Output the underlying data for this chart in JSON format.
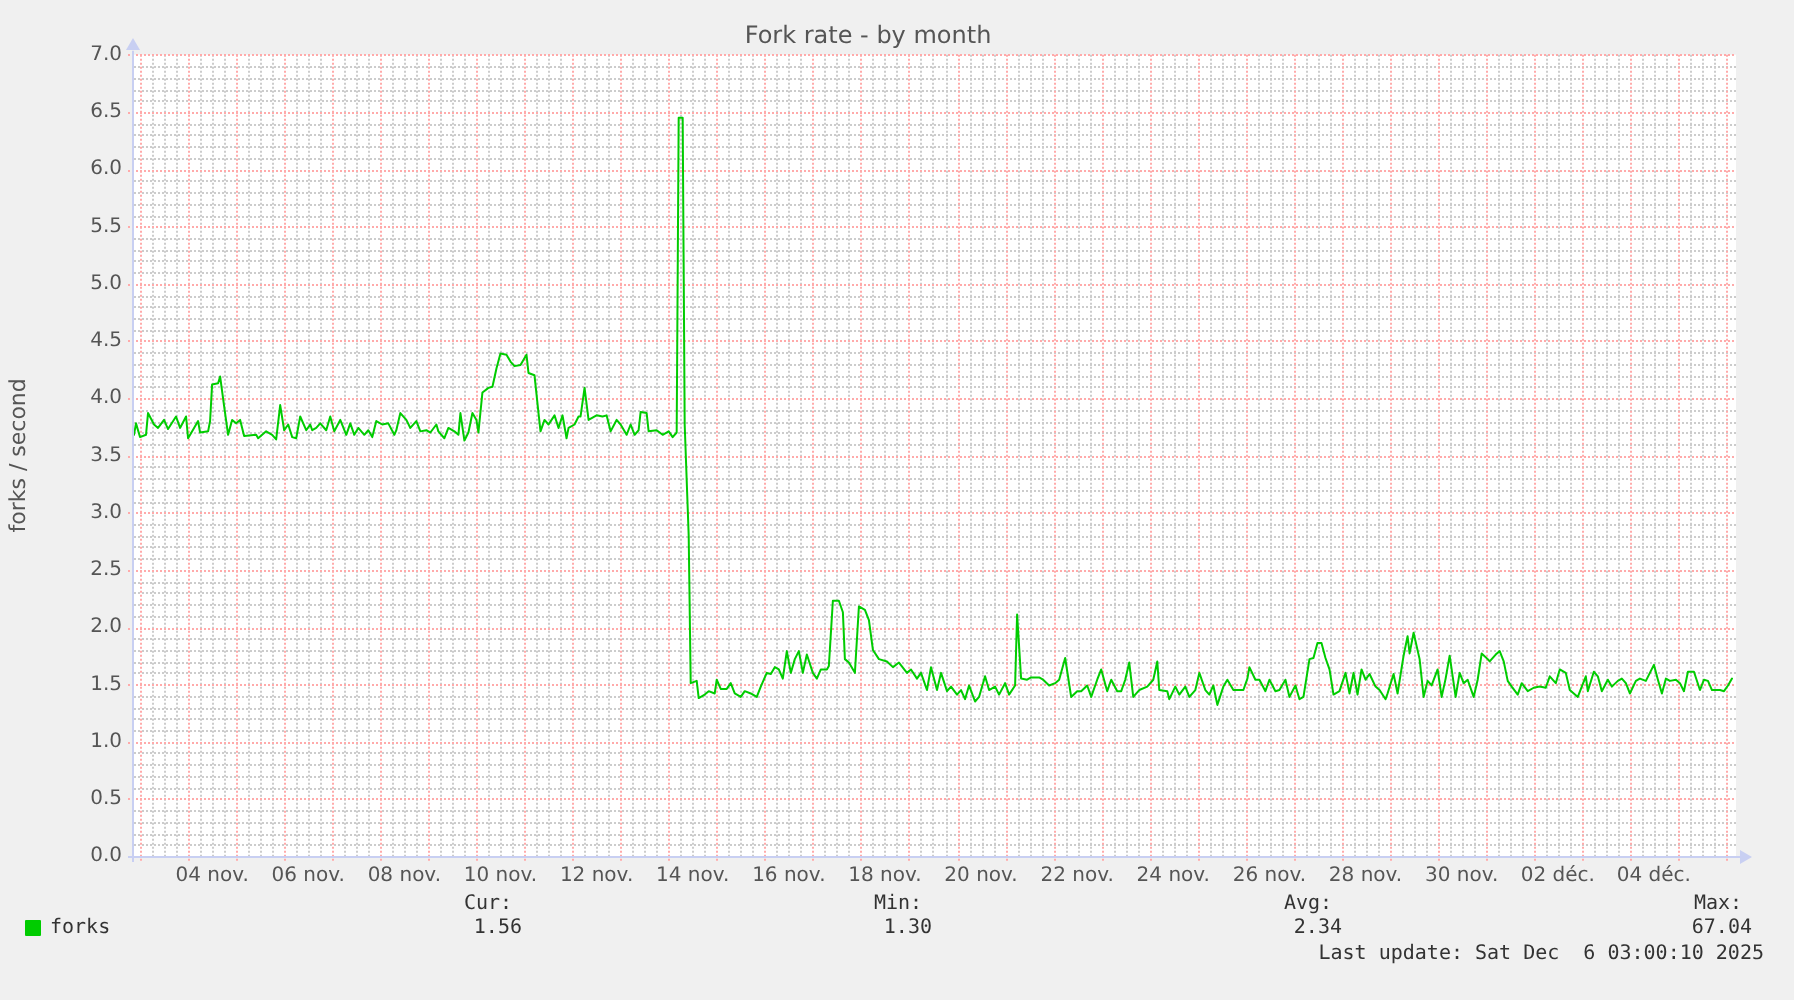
{
  "chart_data": {
    "type": "line",
    "title": "Fork rate - by month",
    "ylabel": "forks / second",
    "x": [
      "2025-11-02T21:00",
      "2025-11-02T22:00",
      "2025-11-03T00:00",
      "2025-11-03T03:00",
      "2025-11-03T04:00",
      "2025-11-03T07:00",
      "2025-11-03T09:00",
      "2025-11-03T12:00",
      "2025-11-03T14:00",
      "2025-11-03T18:00",
      "2025-11-03T20:00",
      "2025-11-03T23:00",
      "2025-11-04T00:00",
      "2025-11-04T03:00",
      "2025-11-04T05:00",
      "2025-11-04T06:00",
      "2025-11-04T10:00",
      "2025-11-04T11:00",
      "2025-11-04T12:00",
      "2025-11-04T15:00",
      "2025-11-04T16:00",
      "2025-11-04T18:00",
      "2025-11-04T20:00",
      "2025-11-04T22:00",
      "2025-11-05T00:00",
      "2025-11-05T02:00",
      "2025-11-05T04:00",
      "2025-11-05T10:00",
      "2025-11-05T11:00",
      "2025-11-05T15:00",
      "2025-11-05T18:00",
      "2025-11-05T20:00",
      "2025-11-05T22:00",
      "2025-11-06T00:00",
      "2025-11-06T02:00",
      "2025-11-06T04:00",
      "2025-11-06T06:00",
      "2025-11-06T08:00",
      "2025-11-06T11:00",
      "2025-11-06T13:00",
      "2025-11-06T14:00",
      "2025-11-06T16:00",
      "2025-11-06T18:00",
      "2025-11-06T21:00",
      "2025-11-06T23:00",
      "2025-11-07T01:00",
      "2025-11-07T04:00",
      "2025-11-07T07:00",
      "2025-11-07T09:00",
      "2025-11-07T11:00",
      "2025-11-07T13:00",
      "2025-11-07T16:00",
      "2025-11-07T18:00",
      "2025-11-07T20:00",
      "2025-11-07T22:00",
      "2025-11-08T01:00",
      "2025-11-08T04:00",
      "2025-11-08T07:00",
      "2025-11-08T08:00",
      "2025-11-08T10:00",
      "2025-11-08T13:00",
      "2025-11-08T15:00",
      "2025-11-08T18:00",
      "2025-11-08T20:00",
      "2025-11-08T23:00",
      "2025-11-09T01:00",
      "2025-11-09T04:00",
      "2025-11-09T05:00",
      "2025-11-09T08:00",
      "2025-11-09T10:00",
      "2025-11-09T13:00",
      "2025-11-09T15:00",
      "2025-11-09T16:00",
      "2025-11-09T18:00",
      "2025-11-09T20:00",
      "2025-11-09T22:00",
      "2025-11-10T00:00",
      "2025-11-10T01:00",
      "2025-11-10T03:00",
      "2025-11-10T06:00",
      "2025-11-10T08:00",
      "2025-11-10T10:00",
      "2025-11-10T12:00",
      "2025-11-10T15:00",
      "2025-11-10T17:00",
      "2025-11-10T19:00",
      "2025-11-10T22:00",
      "2025-11-11T01:00",
      "2025-11-11T02:00",
      "2025-11-11T05:00",
      "2025-11-11T07:00",
      "2025-11-11T08:00",
      "2025-11-11T10:00",
      "2025-11-11T12:00",
      "2025-11-11T15:00",
      "2025-11-11T17:00",
      "2025-11-11T19:00",
      "2025-11-11T21:00",
      "2025-11-11T22:00",
      "2025-11-12T01:00",
      "2025-11-12T03:00",
      "2025-11-12T04:00",
      "2025-11-12T06:00",
      "2025-11-12T08:00",
      "2025-11-12T10:00",
      "2025-11-12T12:00",
      "2025-11-12T15:00",
      "2025-11-12T17:00",
      "2025-11-12T19:00",
      "2025-11-12T22:00",
      "2025-11-13T00:00",
      "2025-11-13T03:00",
      "2025-11-13T05:00",
      "2025-11-13T07:00",
      "2025-11-13T09:00",
      "2025-11-13T10:00",
      "2025-11-13T13:00",
      "2025-11-13T14:00",
      "2025-11-13T18:00",
      "2025-11-13T21:00",
      "2025-11-14T00:00",
      "2025-11-14T02:00",
      "2025-11-14T04:00",
      "2025-11-14T05:00",
      "2025-11-14T07:00",
      "2025-11-14T08:00",
      "2025-11-14T10:00",
      "2025-11-14T11:00",
      "2025-11-14T14:00",
      "2025-11-14T15:00",
      "2025-11-14T18:00",
      "2025-11-14T20:00",
      "2025-11-14T23:00",
      "2025-11-15T00:00",
      "2025-11-15T02:00",
      "2025-11-15T05:00",
      "2025-11-15T07:00",
      "2025-11-15T09:00",
      "2025-11-15T12:00",
      "2025-11-15T14:00",
      "2025-11-15T17:00",
      "2025-11-15T20:00",
      "2025-11-15T22:00",
      "2025-11-16T01:00",
      "2025-11-16T03:00",
      "2025-11-16T05:00",
      "2025-11-16T07:00",
      "2025-11-16T09:00",
      "2025-11-16T11:00",
      "2025-11-16T13:00",
      "2025-11-16T15:00",
      "2025-11-16T17:00",
      "2025-11-16T19:00",
      "2025-11-16T21:00",
      "2025-11-17T00:00",
      "2025-11-17T02:00",
      "2025-11-17T04:00",
      "2025-11-17T07:00",
      "2025-11-17T08:00",
      "2025-11-17T10:00",
      "2025-11-17T13:00",
      "2025-11-17T15:00",
      "2025-11-17T16:00",
      "2025-11-17T18:00",
      "2025-11-17T21:00",
      "2025-11-17T23:00",
      "2025-11-18T02:00",
      "2025-11-18T04:00",
      "2025-11-18T06:00",
      "2025-11-18T09:00",
      "2025-11-18T13:00",
      "2025-11-18T16:00",
      "2025-11-18T19:00",
      "2025-11-18T23:00",
      "2025-11-19T01:00",
      "2025-11-19T04:00",
      "2025-11-19T06:00",
      "2025-11-19T09:00",
      "2025-11-19T11:00",
      "2025-11-19T14:00",
      "2025-11-19T16:00",
      "2025-11-19T19:00",
      "2025-11-19T21:00",
      "2025-11-20T00:00",
      "2025-11-20T02:00",
      "2025-11-20T04:00",
      "2025-11-20T06:00",
      "2025-11-20T09:00",
      "2025-11-20T11:00",
      "2025-11-20T14:00",
      "2025-11-20T16:00",
      "2025-11-20T19:00",
      "2025-11-20T21:00",
      "2025-11-21T00:00",
      "2025-11-21T02:00",
      "2025-11-21T05:00",
      "2025-11-21T06:00",
      "2025-11-21T08:00",
      "2025-11-21T11:00",
      "2025-11-21T13:00",
      "2025-11-21T17:00",
      "2025-11-21T19:00",
      "2025-11-21T22:00",
      "2025-11-22T01:00",
      "2025-11-22T03:00",
      "2025-11-22T06:00",
      "2025-11-22T09:00",
      "2025-11-22T12:00",
      "2025-11-22T14:00",
      "2025-11-22T17:00",
      "2025-11-22T19:00",
      "2025-11-22T22:00",
      "2025-11-23T00:00",
      "2025-11-23T03:00",
      "2025-11-23T05:00",
      "2025-11-23T08:00",
      "2025-11-23T10:00",
      "2025-11-23T12:00",
      "2025-11-23T14:00",
      "2025-11-23T16:00",
      "2025-11-23T19:00",
      "2025-11-23T23:00",
      "2025-11-24T02:00",
      "2025-11-24T04:00",
      "2025-11-24T05:00",
      "2025-11-24T09:00",
      "2025-11-24T10:00",
      "2025-11-24T13:00",
      "2025-11-24T15:00",
      "2025-11-24T18:00",
      "2025-11-24T20:00",
      "2025-11-24T23:00",
      "2025-11-25T01:00",
      "2025-11-25T04:00",
      "2025-11-25T06:00",
      "2025-11-25T08:00",
      "2025-11-25T10:00",
      "2025-11-25T13:00",
      "2025-11-25T15:00",
      "2025-11-25T18:00",
      "2025-11-25T23:00",
      "2025-11-26T01:00",
      "2025-11-26T02:00",
      "2025-11-26T05:00",
      "2025-11-26T07:00",
      "2025-11-26T10:00",
      "2025-11-26T12:00",
      "2025-11-26T15:00",
      "2025-11-26T17:00",
      "2025-11-26T20:00",
      "2025-11-26T22:00",
      "2025-11-27T01:00",
      "2025-11-27T03:00",
      "2025-11-27T05:00",
      "2025-11-27T08:00",
      "2025-11-27T10:00",
      "2025-11-27T12:00",
      "2025-11-27T14:00",
      "2025-11-27T16:00",
      "2025-11-27T18:00",
      "2025-11-27T20:00",
      "2025-11-27T23:00",
      "2025-11-28T02:00",
      "2025-11-28T04:00",
      "2025-11-28T06:00",
      "2025-11-28T08:00",
      "2025-11-28T10:00",
      "2025-11-28T12:00",
      "2025-11-28T14:00",
      "2025-11-28T17:00",
      "2025-11-28T19:00",
      "2025-11-28T22:00",
      "2025-11-28T23:00",
      "2025-11-29T02:00",
      "2025-11-29T04:00",
      "2025-11-29T07:00",
      "2025-11-29T09:00",
      "2025-11-29T10:00",
      "2025-11-29T12:00",
      "2025-11-29T15:00",
      "2025-11-29T17:00",
      "2025-11-29T19:00",
      "2025-11-29T21:00",
      "2025-11-30T00:00",
      "2025-11-30T02:00",
      "2025-11-30T04:00",
      "2025-11-30T06:00",
      "2025-11-30T09:00",
      "2025-11-30T11:00",
      "2025-11-30T13:00",
      "2025-11-30T15:00",
      "2025-11-30T18:00",
      "2025-11-30T20:00",
      "2025-11-30T22:00",
      "2025-12-01T01:00",
      "2025-12-01T02:00",
      "2025-12-01T05:00",
      "2025-12-01T07:00",
      "2025-12-01T09:00",
      "2025-12-01T11:00",
      "2025-12-01T13:00",
      "2025-12-01T16:00",
      "2025-12-01T18:00",
      "2025-12-01T21:00",
      "2025-12-02T00:00",
      "2025-12-02T03:00",
      "2025-12-02T06:00",
      "2025-12-02T08:00",
      "2025-12-02T11:00",
      "2025-12-02T13:00",
      "2025-12-02T16:00",
      "2025-12-02T18:00",
      "2025-12-02T22:00",
      "2025-12-03T00:00",
      "2025-12-03T02:00",
      "2025-12-03T03:00",
      "2025-12-03T06:00",
      "2025-12-03T08:00",
      "2025-12-03T10:00",
      "2025-12-03T13:00",
      "2025-12-03T15:00",
      "2025-12-03T18:00",
      "2025-12-03T20:00",
      "2025-12-03T22:00",
      "2025-12-04T00:00",
      "2025-12-04T03:00",
      "2025-12-04T05:00",
      "2025-12-04T08:00",
      "2025-12-04T10:00",
      "2025-12-04T12:00",
      "2025-12-04T14:00",
      "2025-12-04T16:00",
      "2025-12-04T18:00",
      "2025-12-04T20:00",
      "2025-12-04T23:00",
      "2025-12-05T01:00",
      "2025-12-05T03:00",
      "2025-12-05T05:00",
      "2025-12-05T08:00",
      "2025-12-05T11:00",
      "2025-12-05T13:00",
      "2025-12-05T15:00",
      "2025-12-05T17:00",
      "2025-12-05T21:00",
      "2025-12-05T23:00",
      "2025-12-06T01:00",
      "2025-12-06T03:00"
    ],
    "series": [
      {
        "name": "forks",
        "color": "#00cc00",
        "values": [
          3.68,
          3.78,
          3.66,
          3.68,
          3.87,
          3.77,
          3.74,
          3.81,
          3.73,
          3.84,
          3.74,
          3.84,
          3.65,
          3.74,
          3.8,
          3.7,
          3.71,
          3.8,
          4.12,
          4.13,
          4.19,
          3.93,
          3.68,
          3.81,
          3.78,
          3.81,
          3.67,
          3.68,
          3.65,
          3.71,
          3.68,
          3.64,
          3.94,
          3.72,
          3.77,
          3.66,
          3.65,
          3.84,
          3.72,
          3.77,
          3.72,
          3.74,
          3.78,
          3.72,
          3.84,
          3.71,
          3.81,
          3.68,
          3.78,
          3.68,
          3.74,
          3.68,
          3.72,
          3.66,
          3.8,
          3.77,
          3.78,
          3.68,
          3.72,
          3.87,
          3.81,
          3.74,
          3.8,
          3.71,
          3.72,
          3.7,
          3.77,
          3.71,
          3.65,
          3.74,
          3.71,
          3.68,
          3.87,
          3.63,
          3.7,
          3.87,
          3.81,
          3.7,
          4.05,
          4.09,
          4.1,
          4.26,
          4.39,
          4.38,
          4.32,
          4.28,
          4.29,
          4.38,
          4.22,
          4.2,
          3.87,
          3.71,
          3.81,
          3.77,
          3.85,
          3.74,
          3.85,
          3.65,
          3.74,
          3.77,
          3.84,
          3.84,
          4.09,
          3.81,
          3.83,
          3.85,
          3.84,
          3.85,
          3.71,
          3.81,
          3.77,
          3.68,
          3.77,
          3.68,
          3.72,
          3.88,
          3.87,
          3.71,
          3.72,
          3.68,
          3.71,
          3.66,
          3.7,
          6.45,
          6.45,
          3.77,
          2.8,
          1.51,
          1.53,
          1.38,
          1.41,
          1.44,
          1.42,
          1.54,
          1.46,
          1.46,
          1.51,
          1.42,
          1.39,
          1.44,
          1.42,
          1.39,
          1.48,
          1.6,
          1.59,
          1.65,
          1.63,
          1.55,
          1.79,
          1.6,
          1.72,
          1.79,
          1.6,
          1.76,
          1.6,
          1.55,
          1.63,
          1.63,
          1.66,
          2.23,
          2.23,
          2.13,
          1.72,
          1.69,
          1.6,
          2.18,
          2.15,
          2.06,
          1.8,
          1.72,
          1.7,
          1.65,
          1.69,
          1.6,
          1.63,
          1.55,
          1.6,
          1.45,
          1.65,
          1.45,
          1.6,
          1.44,
          1.48,
          1.41,
          1.45,
          1.37,
          1.49,
          1.35,
          1.39,
          1.57,
          1.45,
          1.48,
          1.41,
          1.51,
          1.41,
          1.49,
          2.11,
          1.55,
          1.54,
          1.56,
          1.56,
          1.54,
          1.49,
          1.51,
          1.54,
          1.73,
          1.39,
          1.44,
          1.44,
          1.49,
          1.39,
          1.54,
          1.63,
          1.44,
          1.54,
          1.44,
          1.44,
          1.54,
          1.69,
          1.39,
          1.45,
          1.48,
          1.54,
          1.7,
          1.45,
          1.44,
          1.37,
          1.48,
          1.41,
          1.48,
          1.39,
          1.45,
          1.6,
          1.45,
          1.41,
          1.49,
          1.32,
          1.48,
          1.54,
          1.45,
          1.45,
          1.55,
          1.65,
          1.54,
          1.54,
          1.44,
          1.54,
          1.44,
          1.45,
          1.54,
          1.39,
          1.49,
          1.37,
          1.39,
          1.72,
          1.73,
          1.86,
          1.86,
          1.73,
          1.63,
          1.41,
          1.44,
          1.6,
          1.42,
          1.6,
          1.41,
          1.63,
          1.54,
          1.59,
          1.48,
          1.45,
          1.37,
          1.42,
          1.59,
          1.42,
          1.75,
          1.92,
          1.77,
          1.95,
          1.72,
          1.39,
          1.53,
          1.49,
          1.63,
          1.39,
          1.55,
          1.75,
          1.39,
          1.6,
          1.51,
          1.54,
          1.39,
          1.54,
          1.77,
          1.72,
          1.7,
          1.76,
          1.79,
          1.7,
          1.53,
          1.48,
          1.41,
          1.51,
          1.44,
          1.47,
          1.48,
          1.47,
          1.57,
          1.51,
          1.63,
          1.6,
          1.45,
          1.39,
          1.48,
          1.57,
          1.44,
          1.61,
          1.57,
          1.44,
          1.54,
          1.48,
          1.53,
          1.55,
          1.51,
          1.42,
          1.53,
          1.55,
          1.53,
          1.6,
          1.67,
          1.54,
          1.42,
          1.55,
          1.53,
          1.54,
          1.51,
          1.44,
          1.61,
          1.61,
          1.45,
          1.54,
          1.53,
          1.45,
          1.45,
          1.44,
          1.49,
          1.55
        ]
      }
    ],
    "xlim": [
      "2025-11-02T21:00",
      "2025-12-06T05:00"
    ],
    "xticks": [
      {
        "value": "2025-11-03T00:00",
        "label": null
      },
      {
        "value": "2025-11-03T06:00",
        "label": null
      },
      {
        "value": "2025-11-03T12:00",
        "label": null
      },
      {
        "value": "2025-11-03T18:00",
        "label": null
      },
      {
        "value": "2025-11-04T00:00",
        "label": null
      },
      {
        "value": "2025-11-04T06:00",
        "label": null
      },
      {
        "value": "2025-11-04T12:00",
        "label": "04 nov."
      },
      {
        "value": "2025-11-04T18:00",
        "label": null
      },
      {
        "value": "2025-11-05T00:00",
        "label": null
      },
      {
        "value": "2025-11-05T06:00",
        "label": null
      },
      {
        "value": "2025-11-05T12:00",
        "label": null
      },
      {
        "value": "2025-11-05T18:00",
        "label": null
      },
      {
        "value": "2025-11-06T00:00",
        "label": null
      },
      {
        "value": "2025-11-06T06:00",
        "label": null
      },
      {
        "value": "2025-11-06T12:00",
        "label": "06 nov."
      },
      {
        "value": "2025-11-06T18:00",
        "label": null
      },
      {
        "value": "2025-11-07T00:00",
        "label": null
      },
      {
        "value": "2025-11-07T06:00",
        "label": null
      },
      {
        "value": "2025-11-07T12:00",
        "label": null
      },
      {
        "value": "2025-11-07T18:00",
        "label": null
      },
      {
        "value": "2025-11-08T00:00",
        "label": null
      },
      {
        "value": "2025-11-08T06:00",
        "label": null
      },
      {
        "value": "2025-11-08T12:00",
        "label": "08 nov."
      },
      {
        "value": "2025-11-08T18:00",
        "label": null
      },
      {
        "value": "2025-11-09T00:00",
        "label": null
      },
      {
        "value": "2025-11-09T06:00",
        "label": null
      },
      {
        "value": "2025-11-09T12:00",
        "label": null
      },
      {
        "value": "2025-11-09T18:00",
        "label": null
      },
      {
        "value": "2025-11-10T00:00",
        "label": null
      },
      {
        "value": "2025-11-10T06:00",
        "label": null
      },
      {
        "value": "2025-11-10T12:00",
        "label": "10 nov."
      },
      {
        "value": "2025-11-10T18:00",
        "label": null
      },
      {
        "value": "2025-11-11T00:00",
        "label": null
      },
      {
        "value": "2025-11-11T06:00",
        "label": null
      },
      {
        "value": "2025-11-11T12:00",
        "label": null
      },
      {
        "value": "2025-11-11T18:00",
        "label": null
      },
      {
        "value": "2025-11-12T00:00",
        "label": null
      },
      {
        "value": "2025-11-12T06:00",
        "label": null
      },
      {
        "value": "2025-11-12T12:00",
        "label": "12 nov."
      },
      {
        "value": "2025-11-12T18:00",
        "label": null
      },
      {
        "value": "2025-11-13T00:00",
        "label": null
      },
      {
        "value": "2025-11-13T06:00",
        "label": null
      },
      {
        "value": "2025-11-13T12:00",
        "label": null
      },
      {
        "value": "2025-11-13T18:00",
        "label": null
      },
      {
        "value": "2025-11-14T00:00",
        "label": null
      },
      {
        "value": "2025-11-14T06:00",
        "label": null
      },
      {
        "value": "2025-11-14T12:00",
        "label": "14 nov."
      },
      {
        "value": "2025-11-14T18:00",
        "label": null
      },
      {
        "value": "2025-11-15T00:00",
        "label": null
      },
      {
        "value": "2025-11-15T06:00",
        "label": null
      },
      {
        "value": "2025-11-15T12:00",
        "label": null
      },
      {
        "value": "2025-11-15T18:00",
        "label": null
      },
      {
        "value": "2025-11-16T00:00",
        "label": null
      },
      {
        "value": "2025-11-16T06:00",
        "label": null
      },
      {
        "value": "2025-11-16T12:00",
        "label": "16 nov."
      },
      {
        "value": "2025-11-16T18:00",
        "label": null
      },
      {
        "value": "2025-11-17T00:00",
        "label": null
      },
      {
        "value": "2025-11-17T06:00",
        "label": null
      },
      {
        "value": "2025-11-17T12:00",
        "label": null
      },
      {
        "value": "2025-11-17T18:00",
        "label": null
      },
      {
        "value": "2025-11-18T00:00",
        "label": null
      },
      {
        "value": "2025-11-18T06:00",
        "label": null
      },
      {
        "value": "2025-11-18T12:00",
        "label": "18 nov."
      },
      {
        "value": "2025-11-18T18:00",
        "label": null
      },
      {
        "value": "2025-11-19T00:00",
        "label": null
      },
      {
        "value": "2025-11-19T06:00",
        "label": null
      },
      {
        "value": "2025-11-19T12:00",
        "label": null
      },
      {
        "value": "2025-11-19T18:00",
        "label": null
      },
      {
        "value": "2025-11-20T00:00",
        "label": null
      },
      {
        "value": "2025-11-20T06:00",
        "label": null
      },
      {
        "value": "2025-11-20T12:00",
        "label": "20 nov."
      },
      {
        "value": "2025-11-20T18:00",
        "label": null
      },
      {
        "value": "2025-11-21T00:00",
        "label": null
      },
      {
        "value": "2025-11-21T06:00",
        "label": null
      },
      {
        "value": "2025-11-21T12:00",
        "label": null
      },
      {
        "value": "2025-11-21T18:00",
        "label": null
      },
      {
        "value": "2025-11-22T00:00",
        "label": null
      },
      {
        "value": "2025-11-22T06:00",
        "label": null
      },
      {
        "value": "2025-11-22T12:00",
        "label": "22 nov."
      },
      {
        "value": "2025-11-22T18:00",
        "label": null
      },
      {
        "value": "2025-11-23T00:00",
        "label": null
      },
      {
        "value": "2025-11-23T06:00",
        "label": null
      },
      {
        "value": "2025-11-23T12:00",
        "label": null
      },
      {
        "value": "2025-11-23T18:00",
        "label": null
      },
      {
        "value": "2025-11-24T00:00",
        "label": null
      },
      {
        "value": "2025-11-24T06:00",
        "label": null
      },
      {
        "value": "2025-11-24T12:00",
        "label": "24 nov."
      },
      {
        "value": "2025-11-24T18:00",
        "label": null
      },
      {
        "value": "2025-11-25T00:00",
        "label": null
      },
      {
        "value": "2025-11-25T06:00",
        "label": null
      },
      {
        "value": "2025-11-25T12:00",
        "label": null
      },
      {
        "value": "2025-11-25T18:00",
        "label": null
      },
      {
        "value": "2025-11-26T00:00",
        "label": null
      },
      {
        "value": "2025-11-26T06:00",
        "label": null
      },
      {
        "value": "2025-11-26T12:00",
        "label": "26 nov."
      },
      {
        "value": "2025-11-26T18:00",
        "label": null
      },
      {
        "value": "2025-11-27T00:00",
        "label": null
      },
      {
        "value": "2025-11-27T06:00",
        "label": null
      },
      {
        "value": "2025-11-27T12:00",
        "label": null
      },
      {
        "value": "2025-11-27T18:00",
        "label": null
      },
      {
        "value": "2025-11-28T00:00",
        "label": null
      },
      {
        "value": "2025-11-28T06:00",
        "label": null
      },
      {
        "value": "2025-11-28T12:00",
        "label": "28 nov."
      },
      {
        "value": "2025-11-28T18:00",
        "label": null
      },
      {
        "value": "2025-11-29T00:00",
        "label": null
      },
      {
        "value": "2025-11-29T06:00",
        "label": null
      },
      {
        "value": "2025-11-29T12:00",
        "label": null
      },
      {
        "value": "2025-11-29T18:00",
        "label": null
      },
      {
        "value": "2025-11-30T00:00",
        "label": null
      },
      {
        "value": "2025-11-30T06:00",
        "label": null
      },
      {
        "value": "2025-11-30T12:00",
        "label": "30 nov."
      },
      {
        "value": "2025-11-30T18:00",
        "label": null
      },
      {
        "value": "2025-12-01T00:00",
        "label": null
      },
      {
        "value": "2025-12-01T06:00",
        "label": null
      },
      {
        "value": "2025-12-01T12:00",
        "label": null
      },
      {
        "value": "2025-12-01T18:00",
        "label": null
      },
      {
        "value": "2025-12-02T00:00",
        "label": null
      },
      {
        "value": "2025-12-02T06:00",
        "label": null
      },
      {
        "value": "2025-12-02T12:00",
        "label": "02 déc."
      },
      {
        "value": "2025-12-02T18:00",
        "label": null
      },
      {
        "value": "2025-12-03T00:00",
        "label": null
      },
      {
        "value": "2025-12-03T06:00",
        "label": null
      },
      {
        "value": "2025-12-03T12:00",
        "label": null
      },
      {
        "value": "2025-12-03T18:00",
        "label": null
      },
      {
        "value": "2025-12-04T00:00",
        "label": null
      },
      {
        "value": "2025-12-04T06:00",
        "label": null
      },
      {
        "value": "2025-12-04T12:00",
        "label": "04 déc."
      },
      {
        "value": "2025-12-04T18:00",
        "label": null
      },
      {
        "value": "2025-12-05T00:00",
        "label": null
      },
      {
        "value": "2025-12-05T06:00",
        "label": null
      },
      {
        "value": "2025-12-05T12:00",
        "label": null
      },
      {
        "value": "2025-12-05T18:00",
        "label": null
      },
      {
        "value": "2025-12-06T00:00",
        "label": null
      }
    ],
    "ylim": [
      0,
      7
    ],
    "yticks": [
      {
        "value": 0,
        "label": "0.0"
      },
      {
        "value": 0.1,
        "label": null
      },
      {
        "value": 0.2,
        "label": null
      },
      {
        "value": 0.3,
        "label": null
      },
      {
        "value": 0.4,
        "label": null
      },
      {
        "value": 0.5,
        "label": "0.5"
      },
      {
        "value": 0.6,
        "label": null
      },
      {
        "value": 0.7,
        "label": null
      },
      {
        "value": 0.8,
        "label": null
      },
      {
        "value": 0.9,
        "label": null
      },
      {
        "value": 1,
        "label": "1.0"
      },
      {
        "value": 1.1,
        "label": null
      },
      {
        "value": 1.2,
        "label": null
      },
      {
        "value": 1.3,
        "label": null
      },
      {
        "value": 1.4,
        "label": null
      },
      {
        "value": 1.5,
        "label": "1.5"
      },
      {
        "value": 1.6,
        "label": null
      },
      {
        "value": 1.7,
        "label": null
      },
      {
        "value": 1.8,
        "label": null
      },
      {
        "value": 1.9,
        "label": null
      },
      {
        "value": 2,
        "label": "2.0"
      },
      {
        "value": 2.1,
        "label": null
      },
      {
        "value": 2.2,
        "label": null
      },
      {
        "value": 2.3,
        "label": null
      },
      {
        "value": 2.4,
        "label": null
      },
      {
        "value": 2.5,
        "label": "2.5"
      },
      {
        "value": 2.6,
        "label": null
      },
      {
        "value": 2.7,
        "label": null
      },
      {
        "value": 2.8,
        "label": null
      },
      {
        "value": 2.9,
        "label": null
      },
      {
        "value": 3,
        "label": "3.0"
      },
      {
        "value": 3.1,
        "label": null
      },
      {
        "value": 3.2,
        "label": null
      },
      {
        "value": 3.3,
        "label": null
      },
      {
        "value": 3.4,
        "label": null
      },
      {
        "value": 3.5,
        "label": "3.5"
      },
      {
        "value": 3.6,
        "label": null
      },
      {
        "value": 3.7,
        "label": null
      },
      {
        "value": 3.8,
        "label": null
      },
      {
        "value": 3.9,
        "label": null
      },
      {
        "value": 4,
        "label": "4.0"
      },
      {
        "value": 4.1,
        "label": null
      },
      {
        "value": 4.2,
        "label": null
      },
      {
        "value": 4.3,
        "label": null
      },
      {
        "value": 4.4,
        "label": null
      },
      {
        "value": 4.5,
        "label": "4.5"
      },
      {
        "value": 4.6,
        "label": null
      },
      {
        "value": 4.7,
        "label": null
      },
      {
        "value": 4.8,
        "label": null
      },
      {
        "value": 4.9,
        "label": null
      },
      {
        "value": 5,
        "label": "5.0"
      },
      {
        "value": 5.1,
        "label": null
      },
      {
        "value": 5.2,
        "label": null
      },
      {
        "value": 5.3,
        "label": null
      },
      {
        "value": 5.4,
        "label": null
      },
      {
        "value": 5.5,
        "label": "5.5"
      },
      {
        "value": 5.6,
        "label": null
      },
      {
        "value": 5.7,
        "label": null
      },
      {
        "value": 5.8,
        "label": null
      },
      {
        "value": 5.9,
        "label": null
      },
      {
        "value": 6,
        "label": "6.0"
      },
      {
        "value": 6.1,
        "label": null
      },
      {
        "value": 6.2,
        "label": null
      },
      {
        "value": 6.3,
        "label": null
      },
      {
        "value": 6.4,
        "label": null
      },
      {
        "value": 6.5,
        "label": "6.5"
      },
      {
        "value": 6.6,
        "label": null
      },
      {
        "value": 6.7,
        "label": null
      },
      {
        "value": 6.8,
        "label": null
      },
      {
        "value": 6.9,
        "label": null
      },
      {
        "value": 7,
        "label": "7.0"
      }
    ],
    "grid": true,
    "legend": "bottom left",
    "annotations": [
      "Cur:",
      "1.56",
      "Min:",
      "1.30",
      "Avg:",
      "2.34",
      "Max:",
      "67.04",
      "Last update: Sat Dec  6 03:00:10 2025"
    ]
  }
}
